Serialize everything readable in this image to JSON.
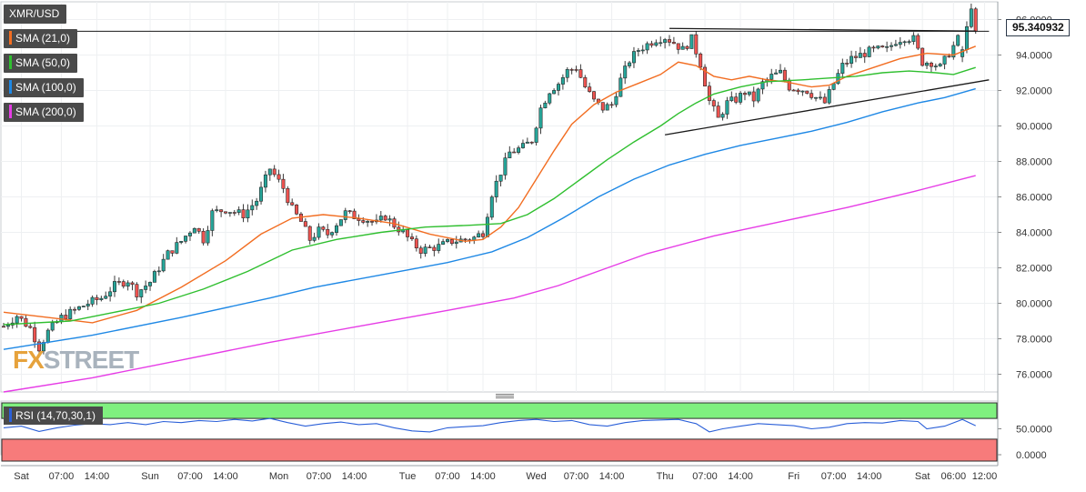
{
  "chart_data": {
    "type": "candlestick",
    "symbol": "XMR/USD",
    "last_price": "95.340932",
    "y_axis": {
      "ylim": [
        75.0,
        97.0
      ],
      "ticks": [
        96,
        94,
        92,
        90,
        88,
        86,
        84,
        82,
        80,
        78,
        76
      ],
      "tick_labels": [
        "96.0000",
        "94.0000",
        "92.0000",
        "90.0000",
        "88.0000",
        "86.0000",
        "84.0000",
        "82.0000",
        "80.0000",
        "78.0000",
        "76.0000"
      ]
    },
    "x_axis": {
      "bars": 220,
      "ticks": [
        {
          "bar": 4,
          "label": "Sat"
        },
        {
          "bar": 13,
          "label": "07:00"
        },
        {
          "bar": 21,
          "label": "14:00"
        },
        {
          "bar": 33,
          "label": "Sun"
        },
        {
          "bar": 42,
          "label": "07:00"
        },
        {
          "bar": 50,
          "label": "14:00"
        },
        {
          "bar": 62,
          "label": "Mon"
        },
        {
          "bar": 71,
          "label": "07:00"
        },
        {
          "bar": 79,
          "label": "14:00"
        },
        {
          "bar": 91,
          "label": "Tue"
        },
        {
          "bar": 100,
          "label": "07:00"
        },
        {
          "bar": 108,
          "label": "14:00"
        },
        {
          "bar": 120,
          "label": "Wed"
        },
        {
          "bar": 129,
          "label": "07:00"
        },
        {
          "bar": 137,
          "label": "14:00"
        },
        {
          "bar": 149,
          "label": "Thu"
        },
        {
          "bar": 158,
          "label": "07:00"
        },
        {
          "bar": 166,
          "label": "14:00"
        },
        {
          "bar": 178,
          "label": "Fri"
        },
        {
          "bar": 187,
          "label": "07:00"
        },
        {
          "bar": 195,
          "label": "14:00"
        },
        {
          "bar": 207,
          "label": "Sat"
        },
        {
          "bar": 214,
          "label": "06:00"
        },
        {
          "bar": 221,
          "label": "12:00"
        }
      ]
    },
    "price_anchors": [
      [
        0,
        78.7
      ],
      [
        3,
        79.3
      ],
      [
        6,
        78.6
      ],
      [
        8,
        77.5
      ],
      [
        10,
        78.4
      ],
      [
        13,
        79.2
      ],
      [
        16,
        79.6
      ],
      [
        19,
        80.0
      ],
      [
        22,
        80.3
      ],
      [
        25,
        81.0
      ],
      [
        28,
        81.3
      ],
      [
        30,
        80.6
      ],
      [
        33,
        81.2
      ],
      [
        37,
        82.8
      ],
      [
        40,
        83.5
      ],
      [
        43,
        84.4
      ],
      [
        45,
        83.6
      ],
      [
        47,
        85.1
      ],
      [
        50,
        85.3
      ],
      [
        54,
        85.0
      ],
      [
        57,
        85.8
      ],
      [
        60,
        87.6
      ],
      [
        63,
        86.5
      ],
      [
        65,
        85.3
      ],
      [
        67,
        84.6
      ],
      [
        69,
        83.6
      ],
      [
        71,
        84.1
      ],
      [
        73,
        83.9
      ],
      [
        75,
        84.5
      ],
      [
        77,
        85.1
      ],
      [
        79,
        84.9
      ],
      [
        81,
        84.8
      ],
      [
        84,
        84.5
      ],
      [
        86,
        84.9
      ],
      [
        88,
        84.4
      ],
      [
        90,
        84.0
      ],
      [
        92,
        83.4
      ],
      [
        94,
        83.0
      ],
      [
        96,
        83.1
      ],
      [
        98,
        83.2
      ],
      [
        101,
        83.5
      ],
      [
        104,
        83.6
      ],
      [
        106,
        83.7
      ],
      [
        108,
        84.0
      ],
      [
        110,
        86.2
      ],
      [
        112,
        87.4
      ],
      [
        114,
        88.5
      ],
      [
        117,
        88.8
      ],
      [
        119,
        89.2
      ],
      [
        121,
        91.0
      ],
      [
        123,
        92.0
      ],
      [
        125,
        92.4
      ],
      [
        127,
        93.1
      ],
      [
        129,
        93.3
      ],
      [
        131,
        92.2
      ],
      [
        133,
        91.4
      ],
      [
        135,
        91.0
      ],
      [
        137,
        91.2
      ],
      [
        139,
        92.6
      ],
      [
        141,
        93.7
      ],
      [
        143,
        94.3
      ],
      [
        145,
        94.6
      ],
      [
        147,
        94.9
      ],
      [
        149,
        95.0
      ],
      [
        151,
        94.7
      ],
      [
        153,
        94.3
      ],
      [
        155,
        94.9
      ],
      [
        157,
        93.5
      ],
      [
        159,
        91.4
      ],
      [
        161,
        90.4
      ],
      [
        163,
        91.3
      ],
      [
        165,
        91.5
      ],
      [
        167,
        91.9
      ],
      [
        169,
        91.5
      ],
      [
        171,
        92.4
      ],
      [
        173,
        92.8
      ],
      [
        175,
        93.0
      ],
      [
        177,
        92.2
      ],
      [
        179,
        92.1
      ],
      [
        181,
        92.0
      ],
      [
        183,
        91.6
      ],
      [
        185,
        91.3
      ],
      [
        187,
        92.4
      ],
      [
        189,
        93.4
      ],
      [
        191,
        93.8
      ],
      [
        193,
        94.0
      ],
      [
        195,
        94.2
      ],
      [
        197,
        94.3
      ],
      [
        199,
        94.3
      ],
      [
        201,
        94.8
      ],
      [
        203,
        95.0
      ],
      [
        205,
        94.9
      ],
      [
        207,
        93.6
      ],
      [
        209,
        93.6
      ],
      [
        211,
        93.3
      ],
      [
        213,
        94.1
      ],
      [
        215,
        94.9
      ],
      [
        217,
        96.3
      ],
      [
        219,
        95.3
      ]
    ],
    "last_bars": [
      {
        "o": 93.9,
        "h": 94.5,
        "l": 93.6,
        "c": 94.3
      },
      {
        "o": 94.3,
        "h": 95.9,
        "l": 94.1,
        "c": 95.6
      },
      {
        "o": 95.6,
        "h": 96.9,
        "l": 95.5,
        "c": 96.6
      },
      {
        "o": 96.6,
        "h": 96.7,
        "l": 95.2,
        "c": 95.34
      }
    ],
    "sma_lines": [
      {
        "name": "SMA (21,0)",
        "color": "#f26d21",
        "points": [
          [
            0,
            79.5
          ],
          [
            10,
            79.2
          ],
          [
            20,
            78.9
          ],
          [
            30,
            79.6
          ],
          [
            40,
            80.9
          ],
          [
            50,
            82.4
          ],
          [
            58,
            83.9
          ],
          [
            65,
            84.8
          ],
          [
            72,
            85.0
          ],
          [
            80,
            84.8
          ],
          [
            88,
            84.5
          ],
          [
            96,
            83.9
          ],
          [
            104,
            83.5
          ],
          [
            108,
            83.6
          ],
          [
            112,
            84.3
          ],
          [
            116,
            85.4
          ],
          [
            120,
            87.0
          ],
          [
            124,
            88.6
          ],
          [
            128,
            90.1
          ],
          [
            133,
            91.2
          ],
          [
            138,
            91.9
          ],
          [
            143,
            92.4
          ],
          [
            148,
            92.9
          ],
          [
            152,
            93.6
          ],
          [
            156,
            93.4
          ],
          [
            160,
            92.8
          ],
          [
            164,
            92.6
          ],
          [
            168,
            92.8
          ],
          [
            172,
            92.6
          ],
          [
            176,
            92.5
          ],
          [
            182,
            92.2
          ],
          [
            186,
            92.3
          ],
          [
            190,
            92.8
          ],
          [
            196,
            93.3
          ],
          [
            202,
            93.8
          ],
          [
            208,
            94.1
          ],
          [
            214,
            94.0
          ],
          [
            219,
            94.5
          ]
        ]
      },
      {
        "name": "SMA (50,0)",
        "color": "#2fbf2f",
        "points": [
          [
            0,
            78.8
          ],
          [
            15,
            79.0
          ],
          [
            25,
            79.5
          ],
          [
            35,
            80.0
          ],
          [
            45,
            80.8
          ],
          [
            55,
            81.8
          ],
          [
            65,
            83.0
          ],
          [
            75,
            83.6
          ],
          [
            85,
            84.0
          ],
          [
            95,
            84.3
          ],
          [
            105,
            84.4
          ],
          [
            112,
            84.5
          ],
          [
            118,
            85.0
          ],
          [
            124,
            85.9
          ],
          [
            130,
            87.0
          ],
          [
            136,
            88.1
          ],
          [
            142,
            89.1
          ],
          [
            148,
            90.0
          ],
          [
            152,
            90.7
          ],
          [
            156,
            91.3
          ],
          [
            160,
            91.8
          ],
          [
            166,
            92.2
          ],
          [
            172,
            92.5
          ],
          [
            180,
            92.6
          ],
          [
            186,
            92.7
          ],
          [
            192,
            92.8
          ],
          [
            198,
            93.0
          ],
          [
            204,
            93.1
          ],
          [
            210,
            93.0
          ],
          [
            214,
            92.9
          ],
          [
            219,
            93.3
          ]
        ]
      },
      {
        "name": "SMA (100,0)",
        "color": "#1e88e5",
        "points": [
          [
            0,
            77.4
          ],
          [
            20,
            78.2
          ],
          [
            40,
            79.2
          ],
          [
            60,
            80.3
          ],
          [
            70,
            80.9
          ],
          [
            85,
            81.6
          ],
          [
            100,
            82.3
          ],
          [
            110,
            82.9
          ],
          [
            118,
            83.7
          ],
          [
            126,
            84.8
          ],
          [
            134,
            86.0
          ],
          [
            142,
            87.0
          ],
          [
            150,
            87.8
          ],
          [
            158,
            88.4
          ],
          [
            166,
            88.9
          ],
          [
            174,
            89.3
          ],
          [
            182,
            89.7
          ],
          [
            190,
            90.2
          ],
          [
            198,
            90.8
          ],
          [
            206,
            91.3
          ],
          [
            212,
            91.6
          ],
          [
            219,
            92.1
          ]
        ]
      },
      {
        "name": "SMA (200,0)",
        "color": "#e63ce6",
        "points": [
          [
            0,
            75.0
          ],
          [
            20,
            75.8
          ],
          [
            40,
            76.8
          ],
          [
            60,
            77.8
          ],
          [
            80,
            78.7
          ],
          [
            100,
            79.6
          ],
          [
            115,
            80.3
          ],
          [
            125,
            81.0
          ],
          [
            135,
            81.9
          ],
          [
            145,
            82.8
          ],
          [
            160,
            83.8
          ],
          [
            175,
            84.6
          ],
          [
            190,
            85.4
          ],
          [
            205,
            86.3
          ],
          [
            219,
            87.2
          ]
        ]
      }
    ],
    "trendlines": [
      {
        "name": "resistance",
        "color": "#1a1a1a",
        "from": [
          150,
          95.5
        ],
        "to": [
          219,
          95.35
        ]
      },
      {
        "name": "horizontal",
        "color": "#1a1a1a",
        "from": [
          0,
          95.34
        ],
        "to": [
          222,
          95.34
        ]
      },
      {
        "name": "support",
        "color": "#1a1a1a",
        "from": [
          149,
          89.5
        ],
        "to": [
          222,
          92.6
        ]
      }
    ],
    "rsi": {
      "label": "RSI (14,70,30,1)",
      "overbought": 70,
      "oversold": 30,
      "ylim": [
        0,
        100
      ],
      "ticks": [
        50,
        0
      ],
      "tick_labels": [
        "50.0000",
        "0.0000"
      ],
      "points": [
        [
          0,
          52
        ],
        [
          4,
          55
        ],
        [
          8,
          45
        ],
        [
          12,
          52
        ],
        [
          16,
          57
        ],
        [
          20,
          60
        ],
        [
          24,
          58
        ],
        [
          28,
          62
        ],
        [
          32,
          58
        ],
        [
          36,
          64
        ],
        [
          40,
          62
        ],
        [
          44,
          66
        ],
        [
          48,
          64
        ],
        [
          52,
          68
        ],
        [
          56,
          65
        ],
        [
          60,
          70
        ],
        [
          64,
          62
        ],
        [
          68,
          55
        ],
        [
          72,
          60
        ],
        [
          76,
          63
        ],
        [
          80,
          58
        ],
        [
          84,
          60
        ],
        [
          88,
          52
        ],
        [
          92,
          46
        ],
        [
          96,
          44
        ],
        [
          100,
          52
        ],
        [
          104,
          54
        ],
        [
          108,
          56
        ],
        [
          112,
          62
        ],
        [
          116,
          66
        ],
        [
          120,
          68
        ],
        [
          124,
          64
        ],
        [
          128,
          66
        ],
        [
          132,
          58
        ],
        [
          136,
          55
        ],
        [
          140,
          62
        ],
        [
          144,
          66
        ],
        [
          148,
          67
        ],
        [
          152,
          68
        ],
        [
          156,
          60
        ],
        [
          159,
          44
        ],
        [
          162,
          50
        ],
        [
          166,
          55
        ],
        [
          170,
          60
        ],
        [
          174,
          58
        ],
        [
          178,
          56
        ],
        [
          182,
          50
        ],
        [
          186,
          53
        ],
        [
          190,
          60
        ],
        [
          194,
          62
        ],
        [
          198,
          61
        ],
        [
          202,
          66
        ],
        [
          206,
          64
        ],
        [
          208,
          50
        ],
        [
          212,
          55
        ],
        [
          216,
          68
        ],
        [
          219,
          56
        ]
      ]
    },
    "legend": [
      "SMA (21,0)",
      "SMA (50,0)",
      "SMA (100,0)",
      "SMA (200,0)"
    ],
    "grid": true
  },
  "watermark": {
    "fx": "FX",
    "brand": "STREET"
  },
  "colors": {
    "up": "#26a69a",
    "down": "#ef5350",
    "upper_band": "#7ff07f",
    "lower_band": "#f77b7b",
    "rsi_line": "#2a5fd8"
  }
}
